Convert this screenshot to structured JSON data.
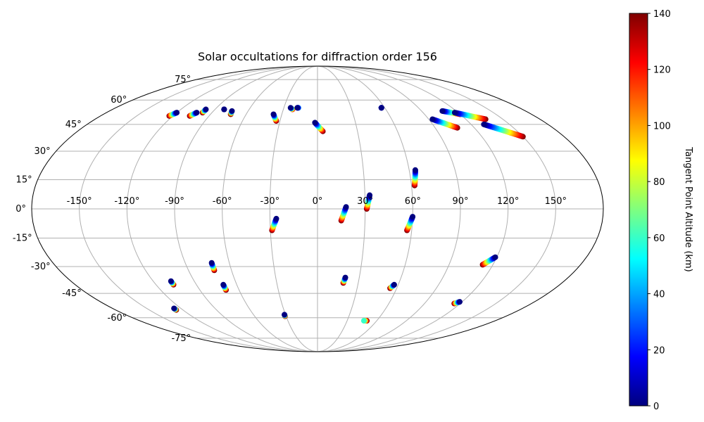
{
  "chart_data": {
    "type": "scatter",
    "projection": "mollweide",
    "title": "Solar occultations for diffraction order 156",
    "xlabel": "",
    "ylabel": "",
    "x_range_deg": [
      -180,
      180
    ],
    "y_range_deg": [
      -90,
      90
    ],
    "grid": true,
    "x_ticks": [
      {
        "value": -150,
        "label": "-150°"
      },
      {
        "value": -120,
        "label": "-120°"
      },
      {
        "value": -90,
        "label": "-90°"
      },
      {
        "value": -60,
        "label": "-60°"
      },
      {
        "value": -30,
        "label": "-30°"
      },
      {
        "value": 0,
        "label": "0°"
      },
      {
        "value": 30,
        "label": "30°"
      },
      {
        "value": 60,
        "label": "60°"
      },
      {
        "value": 90,
        "label": "90°"
      },
      {
        "value": 120,
        "label": "120°"
      },
      {
        "value": 150,
        "label": "150°"
      }
    ],
    "y_ticks": [
      {
        "value": 75,
        "label": "75°"
      },
      {
        "value": 60,
        "label": "60°"
      },
      {
        "value": 45,
        "label": "45°"
      },
      {
        "value": 30,
        "label": "30°"
      },
      {
        "value": 15,
        "label": "15°"
      },
      {
        "value": 0,
        "label": "0°"
      },
      {
        "value": -15,
        "label": "-15°"
      },
      {
        "value": -30,
        "label": "-30°"
      },
      {
        "value": -45,
        "label": "-45°"
      },
      {
        "value": -60,
        "label": "-60°"
      },
      {
        "value": -75,
        "label": "-75°"
      }
    ],
    "colorbar": {
      "label": "Tangent Point Altitude (km)",
      "colormap": "jet",
      "range": [
        0,
        140
      ],
      "ticks": [
        0,
        20,
        40,
        60,
        80,
        100,
        120,
        140
      ]
    },
    "colormap_stops": [
      "#00007f",
      "#0000ff",
      "#007fff",
      "#00ffff",
      "#7fff7f",
      "#ffff00",
      "#ff7f00",
      "#ff0000",
      "#7f0000"
    ],
    "tracks": [
      {
        "lon_start": -120,
        "lat_start": 52,
        "lon_end": -123,
        "lat_end": 50,
        "alt_start": 0,
        "alt_end": 140
      },
      {
        "lon_start": -103,
        "lat_start": 52,
        "lon_end": -106,
        "lat_end": 50,
        "alt_start": 0,
        "alt_end": 140
      },
      {
        "lon_start": -98,
        "lat_start": 54,
        "lon_end": -98,
        "lat_end": 52,
        "alt_start": 0,
        "alt_end": 140
      },
      {
        "lon_start": -82,
        "lat_start": 54,
        "lon_end": -82,
        "lat_end": 54,
        "alt_start": 0,
        "alt_end": 10
      },
      {
        "lon_start": -74,
        "lat_start": 53,
        "lon_end": -73,
        "lat_end": 51,
        "alt_start": 0,
        "alt_end": 140
      },
      {
        "lon_start": -37,
        "lat_start": 51,
        "lon_end": -33,
        "lat_end": 47,
        "alt_start": 0,
        "alt_end": 140
      },
      {
        "lon_start": -24,
        "lat_start": 55,
        "lon_end": -22,
        "lat_end": 54,
        "alt_start": 0,
        "alt_end": 120
      },
      {
        "lon_start": -18,
        "lat_start": 55,
        "lon_end": -17,
        "lat_end": 55,
        "alt_start": 0,
        "alt_end": 40
      },
      {
        "lon_start": -2,
        "lat_start": 46,
        "lon_end": 4,
        "lat_end": 41,
        "alt_start": 0,
        "alt_end": 140
      },
      {
        "lon_start": 57,
        "lat_start": 55,
        "lon_end": 57,
        "lat_end": 55,
        "alt_start": 0,
        "alt_end": 30
      },
      {
        "lon_start": 93,
        "lat_start": 48,
        "lon_end": 107,
        "lat_end": 43,
        "alt_start": 0,
        "alt_end": 140
      },
      {
        "lon_start": 108,
        "lat_start": 53,
        "lon_end": 120,
        "lat_end": 51,
        "alt_start": 0,
        "alt_end": 140
      },
      {
        "lon_start": 117,
        "lat_start": 52,
        "lon_end": 136,
        "lat_end": 48,
        "alt_start": 0,
        "alt_end": 140
      },
      {
        "lon_start": 130,
        "lat_start": 45,
        "lon_end": 150,
        "lat_end": 38,
        "alt_start": 0,
        "alt_end": 140
      },
      {
        "lon_start": 64,
        "lat_start": 20,
        "lon_end": 62,
        "lat_end": 12,
        "alt_start": 0,
        "alt_end": 140
      },
      {
        "lon_start": 33,
        "lat_start": 7,
        "lon_end": 31,
        "lat_end": 0,
        "alt_start": 0,
        "alt_end": 140
      },
      {
        "lon_start": 18,
        "lat_start": 1,
        "lon_end": 15,
        "lat_end": -6,
        "alt_start": 0,
        "alt_end": 140
      },
      {
        "lon_start": -26,
        "lat_start": -5,
        "lon_end": -29,
        "lat_end": -11,
        "alt_start": 0,
        "alt_end": 140
      },
      {
        "lon_start": 60,
        "lat_start": -4,
        "lon_end": 57,
        "lat_end": -11,
        "alt_start": 0,
        "alt_end": 140
      },
      {
        "lon_start": -72,
        "lat_start": -28,
        "lon_end": -72,
        "lat_end": -32,
        "alt_start": 0,
        "alt_end": 140
      },
      {
        "lon_start": 119,
        "lat_start": -25,
        "lon_end": 113,
        "lat_end": -29,
        "alt_start": 0,
        "alt_end": 140
      },
      {
        "lon_start": -107,
        "lat_start": -38,
        "lon_end": -107,
        "lat_end": -40,
        "alt_start": 0,
        "alt_end": 140
      },
      {
        "lon_start": -70,
        "lat_start": -40,
        "lon_end": -70,
        "lat_end": -43,
        "alt_start": 0,
        "alt_end": 140
      },
      {
        "lon_start": 20,
        "lat_start": -36,
        "lon_end": 19,
        "lat_end": -39,
        "alt_start": 0,
        "alt_end": 140
      },
      {
        "lon_start": 57,
        "lat_start": -40,
        "lon_end": 55,
        "lat_end": -42,
        "alt_start": 0,
        "alt_end": 140
      },
      {
        "lon_start": 118,
        "lat_start": -50,
        "lon_end": 115,
        "lat_end": -51,
        "alt_start": 0,
        "alt_end": 140
      },
      {
        "lon_start": -126,
        "lat_start": -54,
        "lon_end": -126,
        "lat_end": -55,
        "alt_start": 0,
        "alt_end": 140
      },
      {
        "lon_start": -31,
        "lat_start": -58,
        "lon_end": -31,
        "lat_end": -59,
        "alt_start": 0,
        "alt_end": 140
      },
      {
        "lon_start": 47,
        "lat_start": -62,
        "lon_end": 50,
        "lat_end": -62,
        "alt_start": 60,
        "alt_end": 140
      }
    ]
  }
}
